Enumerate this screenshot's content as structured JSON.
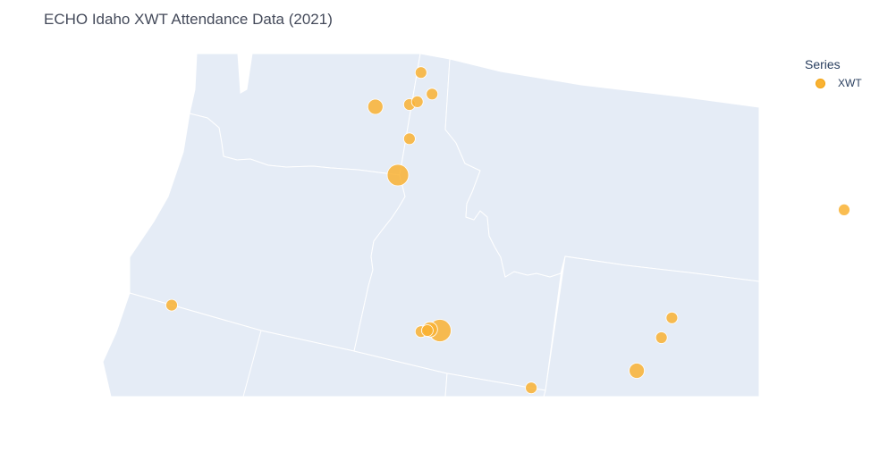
{
  "title": "ECHO Idaho XWT Attendance Data (2021)",
  "legend": {
    "title": "Series",
    "entries": [
      {
        "label": "XWT",
        "color": "#f9b233"
      }
    ]
  },
  "colors": {
    "land": "#e5ecf6",
    "border": "#ffffff",
    "marker": "#f9b233",
    "marker_outline": "#f2a30f"
  },
  "map": {
    "projection": "albers-usa",
    "center": [
      -115.5,
      45.2
    ]
  },
  "chart_data": {
    "type": "scatter",
    "series": [
      {
        "name": "XWT",
        "points": [
          {
            "lon": -117.43,
            "lat": 47.66,
            "size": 3
          },
          {
            "lon": -116.56,
            "lat": 48.28,
            "size": 2
          },
          {
            "lon": -116.78,
            "lat": 47.7,
            "size": 2
          },
          {
            "lon": -116.63,
            "lat": 47.75,
            "size": 2
          },
          {
            "lon": -116.35,
            "lat": 47.89,
            "size": 2
          },
          {
            "lon": -116.78,
            "lat": 47.08,
            "size": 2
          },
          {
            "lon": -117.0,
            "lat": 46.42,
            "size": 4
          },
          {
            "lon": -116.56,
            "lat": 43.58,
            "size": 2
          },
          {
            "lon": -116.2,
            "lat": 43.6,
            "size": 5
          },
          {
            "lon": -116.39,
            "lat": 43.62,
            "size": 3
          },
          {
            "lon": -116.44,
            "lat": 43.6,
            "size": 2
          },
          {
            "lon": -114.46,
            "lat": 42.56,
            "size": 2
          },
          {
            "lon": -112.45,
            "lat": 42.87,
            "size": 3
          },
          {
            "lon": -111.98,
            "lat": 43.47,
            "size": 2
          },
          {
            "lon": -111.78,
            "lat": 43.83,
            "size": 2
          },
          {
            "lon": -121.31,
            "lat": 44.06,
            "size": 2
          },
          {
            "lon": -108.5,
            "lat": 45.79,
            "size": 2
          }
        ]
      }
    ]
  }
}
